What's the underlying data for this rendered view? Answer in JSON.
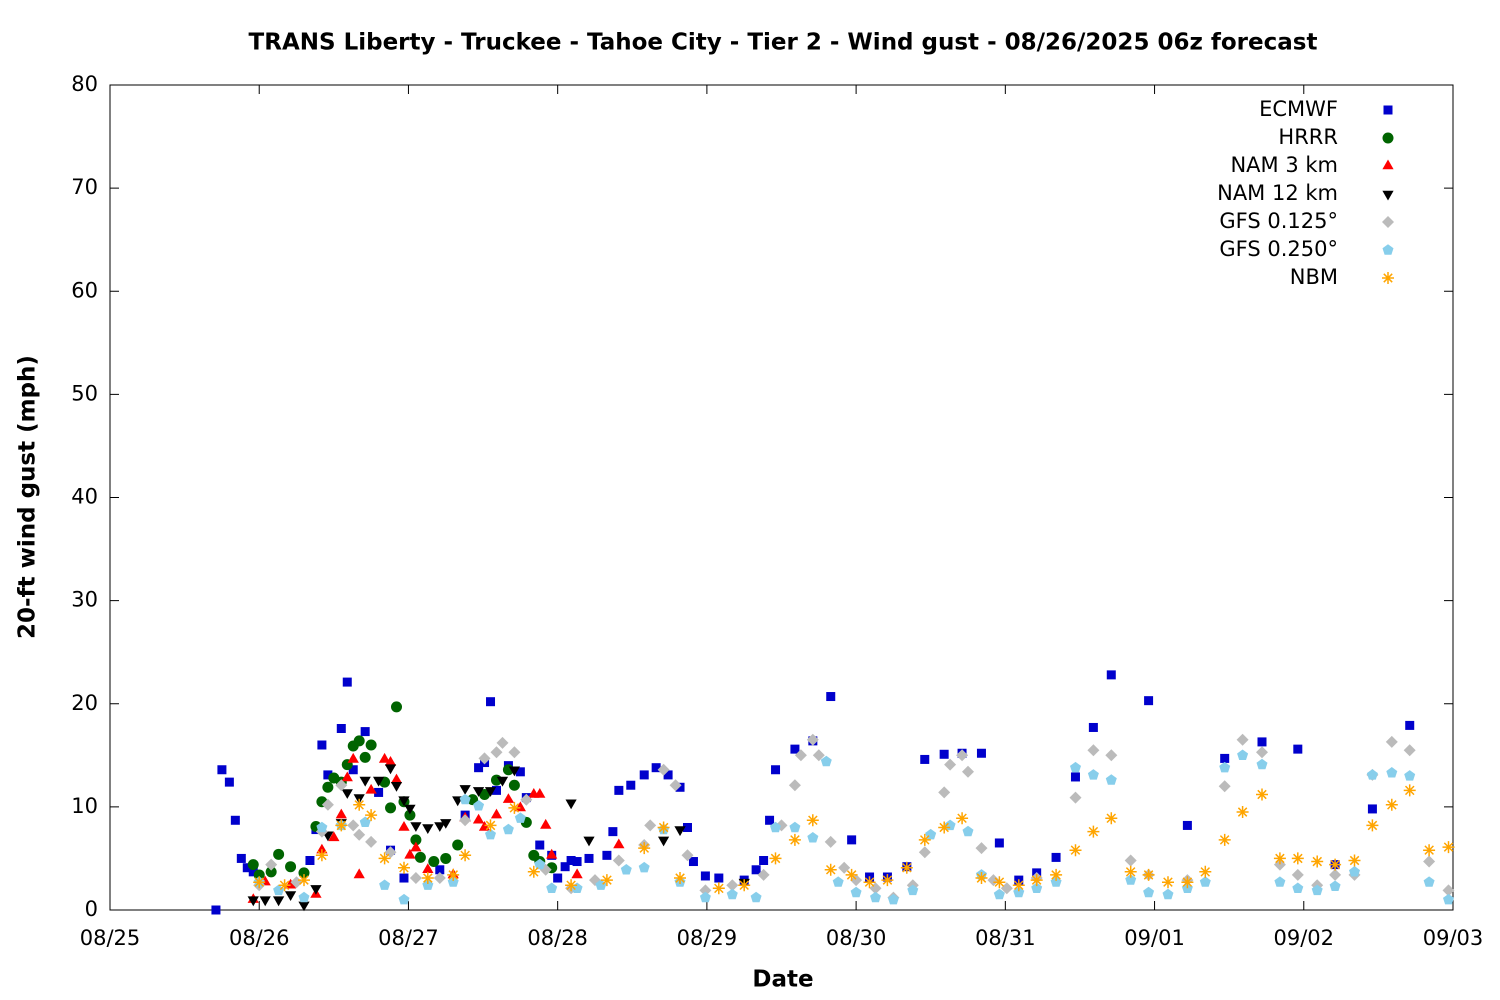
{
  "chart_data": {
    "type": "scatter",
    "title": "TRANS Liberty - Truckee - Tahoe City - Tier 2 - Wind gust - 08/26/2025 06z forecast",
    "x_label": "Date",
    "y_label": "20-ft wind gust (mph)",
    "xlim": [
      0,
      9
    ],
    "xticks": [
      {
        "value": 0,
        "label": "08/25"
      },
      {
        "value": 1,
        "label": "08/26"
      },
      {
        "value": 2,
        "label": "08/27"
      },
      {
        "value": 3,
        "label": "08/28"
      },
      {
        "value": 4,
        "label": "08/29"
      },
      {
        "value": 5,
        "label": "08/30"
      },
      {
        "value": 6,
        "label": "08/31"
      },
      {
        "value": 7,
        "label": "09/01"
      },
      {
        "value": 8,
        "label": "09/02"
      },
      {
        "value": 9,
        "label": "09/03"
      }
    ],
    "ylim": [
      0,
      80
    ],
    "yticks": [
      0,
      10,
      20,
      30,
      40,
      50,
      60,
      70,
      80
    ],
    "legend": "top right",
    "series": [
      {
        "name": "ECMWF",
        "color": "#0000cc",
        "marker": "square",
        "x": [
          0.71,
          0.75,
          0.8,
          0.84,
          0.88,
          0.92,
          0.96,
          1.34,
          1.38,
          1.42,
          1.46,
          1.55,
          1.59,
          1.63,
          1.71,
          1.8,
          1.88,
          1.97,
          2.21,
          2.38,
          2.47,
          2.51,
          2.55,
          2.59,
          2.67,
          2.75,
          2.79,
          2.88,
          2.96,
          3.0,
          3.05,
          3.09,
          3.13,
          3.21,
          3.33,
          3.37,
          3.41,
          3.49,
          3.58,
          3.66,
          3.74,
          3.82,
          3.87,
          3.91,
          3.99,
          4.08,
          4.25,
          4.33,
          4.38,
          4.42,
          4.46,
          4.59,
          4.71,
          4.83,
          4.97,
          5.09,
          5.21,
          5.34,
          5.46,
          5.59,
          5.71,
          5.84,
          5.96,
          6.09,
          6.21,
          6.34,
          6.47,
          6.59,
          6.71,
          6.96,
          7.22,
          7.47,
          7.72,
          7.96,
          8.21,
          8.46,
          8.71
        ],
        "values": [
          0,
          13.6,
          12.4,
          8.7,
          5.0,
          4.1,
          3.7,
          4.8,
          7.8,
          16.0,
          13.1,
          17.6,
          22.1,
          13.6,
          17.3,
          11.4,
          5.8,
          3.1,
          3.9,
          9.2,
          13.8,
          14.3,
          20.2,
          11.6,
          14.0,
          13.4,
          10.9,
          6.3,
          5.3,
          3.1,
          4.2,
          4.8,
          4.7,
          5.0,
          5.3,
          7.6,
          11.6,
          12.1,
          13.1,
          13.8,
          13.1,
          11.9,
          8.0,
          4.7,
          3.3,
          3.1,
          2.9,
          3.9,
          4.8,
          8.7,
          13.6,
          15.6,
          16.4,
          20.7,
          6.8,
          3.2,
          3.2,
          4.2,
          14.6,
          15.1,
          15.2,
          15.2,
          6.5,
          2.9,
          3.6,
          5.1,
          12.9,
          17.7,
          22.8,
          20.3,
          8.2,
          14.7,
          16.3,
          15.6,
          4.4,
          9.8,
          17.9
        ]
      },
      {
        "name": "HRRR",
        "color": "#006400",
        "marker": "circle",
        "x": [
          0.96,
          1.0,
          1.08,
          1.13,
          1.21,
          1.3,
          1.38,
          1.42,
          1.46,
          1.5,
          1.55,
          1.59,
          1.63,
          1.67,
          1.71,
          1.75,
          1.84,
          1.88,
          1.92,
          1.97,
          2.01,
          2.05,
          2.08,
          2.17,
          2.25,
          2.33,
          2.43,
          2.51,
          2.59,
          2.67,
          2.71,
          2.79,
          2.84,
          2.88,
          2.96
        ],
        "values": [
          4.4,
          3.4,
          3.7,
          5.4,
          4.2,
          3.6,
          8.1,
          10.5,
          11.9,
          12.8,
          12.4,
          14.1,
          15.9,
          16.4,
          14.8,
          16.0,
          12.4,
          9.9,
          19.7,
          10.5,
          9.2,
          6.8,
          5.1,
          4.7,
          5.0,
          6.3,
          10.7,
          11.2,
          12.6,
          13.6,
          12.1,
          8.5,
          5.3,
          4.7,
          4.1
        ]
      },
      {
        "name": "NAM 3 km",
        "color": "#ff0000",
        "marker": "triangle-up",
        "x": [
          0.96,
          1.04,
          1.21,
          1.38,
          1.42,
          1.5,
          1.55,
          1.59,
          1.63,
          1.67,
          1.75,
          1.84,
          1.88,
          1.92,
          1.97,
          2.01,
          2.05,
          2.13,
          2.3,
          2.38,
          2.47,
          2.51,
          2.59,
          2.67,
          2.75,
          2.84,
          2.88,
          2.92,
          2.96,
          3.13,
          3.41
        ],
        "values": [
          1.0,
          2.7,
          2.4,
          1.5,
          5.8,
          7.0,
          9.2,
          12.8,
          14.6,
          3.4,
          11.6,
          14.6,
          14.3,
          12.6,
          8.0,
          5.3,
          6.0,
          3.9,
          3.4,
          8.9,
          8.7,
          8.0,
          9.2,
          10.7,
          9.9,
          11.2,
          11.2,
          8.2,
          5.3,
          3.4,
          6.3
        ]
      },
      {
        "name": "NAM 12 km",
        "color": "#000000",
        "marker": "triangle-down",
        "x": [
          0.96,
          1.04,
          1.13,
          1.21,
          1.3,
          1.38,
          1.46,
          1.55,
          1.59,
          1.67,
          1.71,
          1.8,
          1.88,
          1.92,
          1.97,
          2.01,
          2.05,
          2.13,
          2.21,
          2.25,
          2.33,
          2.38,
          2.47,
          2.55,
          2.63,
          2.71,
          3.09,
          3.21,
          3.71,
          3.82,
          4.25
        ],
        "values": [
          1.0,
          1.0,
          1.0,
          1.5,
          0.5,
          2.1,
          7.3,
          8.5,
          11.4,
          10.9,
          12.6,
          12.6,
          13.8,
          12.1,
          10.7,
          9.9,
          8.2,
          8.0,
          8.2,
          8.5,
          10.7,
          11.8,
          11.6,
          11.6,
          12.6,
          13.6,
          10.4,
          6.8,
          6.8,
          7.8,
          2.7
        ]
      },
      {
        "name": "GFS 0.125°",
        "color": "#bbbbbb",
        "marker": "diamond",
        "x": [
          1.0,
          1.08,
          1.25,
          1.42,
          1.46,
          1.55,
          1.63,
          1.67,
          1.75,
          1.88,
          2.05,
          2.21,
          2.38,
          2.51,
          2.59,
          2.63,
          2.71,
          2.79,
          2.92,
          3.09,
          3.25,
          3.41,
          3.58,
          3.62,
          3.71,
          3.79,
          3.87,
          3.99,
          4.17,
          4.38,
          4.5,
          4.59,
          4.63,
          4.71,
          4.75,
          4.83,
          4.92,
          5.0,
          5.13,
          5.25,
          5.38,
          5.46,
          5.59,
          5.63,
          5.71,
          5.75,
          5.84,
          5.92,
          6.01,
          6.21,
          6.47,
          6.59,
          6.71,
          6.84,
          6.96,
          7.22,
          7.47,
          7.59,
          7.72,
          7.84,
          7.96,
          8.09,
          8.21,
          8.34,
          8.46,
          8.59,
          8.71,
          8.84,
          8.97
        ],
        "values": [
          2.4,
          4.4,
          2.7,
          7.6,
          10.2,
          12.1,
          8.2,
          7.3,
          6.6,
          5.6,
          3.1,
          3.1,
          8.7,
          14.7,
          15.3,
          16.2,
          15.3,
          10.7,
          3.9,
          2.1,
          2.9,
          4.8,
          6.3,
          8.2,
          13.6,
          12.1,
          5.3,
          1.9,
          2.4,
          3.4,
          8.2,
          12.1,
          15.0,
          16.5,
          15.0,
          6.6,
          4.1,
          2.9,
          2.1,
          1.2,
          2.4,
          5.6,
          11.4,
          14.1,
          15.0,
          13.4,
          6.0,
          2.9,
          2.1,
          3.1,
          10.9,
          15.5,
          15.0,
          4.8,
          3.4,
          2.9,
          12.0,
          16.5,
          15.3,
          4.4,
          3.4,
          2.4,
          3.4,
          3.4,
          13.1,
          16.3,
          15.5,
          4.7,
          1.9
        ]
      },
      {
        "name": "GFS 0.250°",
        "color": "#87ceeb",
        "marker": "pentagon",
        "x": [
          1.0,
          1.13,
          1.3,
          1.42,
          1.55,
          1.71,
          1.84,
          1.97,
          2.13,
          2.3,
          2.38,
          2.47,
          2.55,
          2.67,
          2.75,
          2.88,
          2.96,
          3.13,
          3.29,
          3.46,
          3.58,
          3.71,
          3.82,
          3.99,
          4.17,
          4.33,
          4.46,
          4.59,
          4.71,
          4.8,
          4.88,
          5.0,
          5.13,
          5.25,
          5.38,
          5.5,
          5.63,
          5.75,
          5.84,
          5.96,
          6.09,
          6.21,
          6.34,
          6.47,
          6.59,
          6.71,
          6.84,
          6.96,
          7.09,
          7.22,
          7.34,
          7.47,
          7.59,
          7.72,
          7.84,
          7.96,
          8.09,
          8.21,
          8.34,
          8.46,
          8.59,
          8.71,
          8.84,
          8.97
        ],
        "values": [
          2.7,
          1.9,
          1.2,
          8.0,
          8.2,
          8.5,
          2.4,
          1.0,
          2.4,
          2.7,
          10.7,
          10.1,
          7.3,
          7.8,
          8.9,
          4.4,
          2.1,
          2.1,
          2.4,
          3.9,
          4.1,
          7.8,
          2.7,
          1.2,
          1.5,
          1.2,
          8.0,
          8.0,
          7.0,
          14.4,
          2.7,
          1.7,
          1.2,
          1.0,
          1.9,
          7.3,
          8.2,
          7.6,
          3.4,
          1.5,
          1.7,
          2.1,
          2.7,
          13.8,
          13.1,
          12.6,
          2.9,
          1.7,
          1.5,
          2.1,
          2.7,
          13.8,
          15.0,
          14.1,
          2.7,
          2.1,
          1.9,
          2.3,
          3.7,
          13.1,
          13.3,
          13.0,
          2.7,
          1.0
        ]
      },
      {
        "name": "NBM",
        "color": "#ffa500",
        "marker": "star",
        "x": [
          1.0,
          1.17,
          1.3,
          1.42,
          1.55,
          1.67,
          1.75,
          1.84,
          1.97,
          2.13,
          2.3,
          2.38,
          2.55,
          2.71,
          2.84,
          3.09,
          3.33,
          3.58,
          3.71,
          3.82,
          4.08,
          4.25,
          4.46,
          4.59,
          4.71,
          4.83,
          4.97,
          5.09,
          5.21,
          5.34,
          5.46,
          5.59,
          5.71,
          5.84,
          5.96,
          6.09,
          6.21,
          6.34,
          6.47,
          6.59,
          6.71,
          6.84,
          6.96,
          7.09,
          7.22,
          7.34,
          7.47,
          7.59,
          7.72,
          7.84,
          7.96,
          8.09,
          8.21,
          8.34,
          8.46,
          8.59,
          8.71,
          8.84,
          8.97
        ],
        "values": [
          2.7,
          2.4,
          2.9,
          5.3,
          8.2,
          10.2,
          9.2,
          5.0,
          4.1,
          3.1,
          3.4,
          5.3,
          8.2,
          9.9,
          3.7,
          2.4,
          2.9,
          6.0,
          8.0,
          3.1,
          2.1,
          2.4,
          5.0,
          6.8,
          8.7,
          3.9,
          3.4,
          2.7,
          2.9,
          4.1,
          6.8,
          8.0,
          8.9,
          3.1,
          2.7,
          2.4,
          2.9,
          3.4,
          5.8,
          7.6,
          8.9,
          3.7,
          3.4,
          2.7,
          2.7,
          3.7,
          6.8,
          9.5,
          11.2,
          5.0,
          5.0,
          4.7,
          4.4,
          4.8,
          8.2,
          10.2,
          11.6,
          5.8,
          6.1
        ]
      }
    ]
  }
}
